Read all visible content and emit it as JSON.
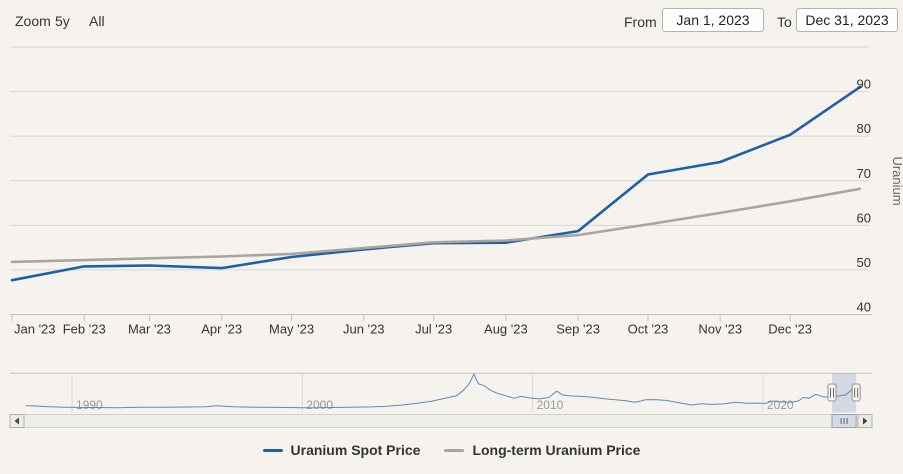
{
  "toolbar": {
    "zoom_label": "Zoom",
    "zoom_buttons": [
      "5y",
      "All"
    ],
    "from_label": "From",
    "from_value": "Jan 1, 2023",
    "to_label": "To",
    "to_value": "Dec 31, 2023"
  },
  "colors": {
    "background": "#f6f3ee",
    "spot": "#1e5fa8",
    "long_term": "#a9a59e",
    "navigator_line": "#6189b7",
    "navigator_mask": "rgba(91,125,188,0.22)",
    "grid": "#d8d6d1",
    "axis": "#c5c3be",
    "text": "#333333",
    "muted_text": "#999999",
    "axis_title": "#666666"
  },
  "chart_data": {
    "type": "line",
    "title": "",
    "y_axis": {
      "title": "Uranium",
      "side": "right",
      "ticks": [
        40,
        50,
        60,
        70,
        80,
        90
      ],
      "range": [
        40,
        100
      ],
      "grid": true
    },
    "x_axis": {
      "tick_labels": [
        "Jan '23",
        "Feb '23",
        "Mar '23",
        "Apr '23",
        "May '23",
        "Jun '23",
        "Jul '23",
        "Aug '23",
        "Sep '23",
        "Oct '23",
        "Nov '23",
        "Dec '23"
      ],
      "range": [
        "Jan 1, 2023",
        "Dec 31, 2023"
      ]
    },
    "categories": [
      "Jan 1, 2023",
      "Feb 1, 2023",
      "Mar 1, 2023",
      "Apr 1, 2023",
      "May 1, 2023",
      "Jun 1, 2023",
      "Jul 1, 2023",
      "Aug 1, 2023",
      "Sep 1, 2023",
      "Oct 1, 2023",
      "Nov 1, 2023",
      "Dec 1, 2023",
      "Dec 31, 2023"
    ],
    "day_offsets": [
      0,
      31,
      59,
      90,
      120,
      151,
      181,
      212,
      243,
      273,
      304,
      334,
      364
    ],
    "series": [
      {
        "name": "Uranium Spot Price",
        "color": "#1e5fa8",
        "values": [
          47.7,
          50.8,
          51.0,
          50.4,
          52.9,
          54.6,
          56.0,
          56.1,
          58.7,
          71.4,
          74.2,
          80.3,
          91.0
        ]
      },
      {
        "name": "Long-term Uranium Price",
        "color": "#a9a59e",
        "values": [
          51.8,
          52.2,
          52.6,
          53.0,
          53.6,
          54.9,
          56.2,
          56.6,
          57.8,
          60.2,
          62.8,
          65.4,
          68.2
        ]
      }
    ],
    "navigator": {
      "tick_labels": [
        "1990",
        "2000",
        "2010",
        "2020"
      ],
      "tick_years": [
        1990,
        2000,
        2010,
        2020
      ],
      "selected_start_year": 2023.0,
      "selected_end_year": 2024.05,
      "points": [
        [
          1988,
          16
        ],
        [
          1988.5,
          14
        ],
        [
          1989,
          12
        ],
        [
          1989.7,
          10
        ],
        [
          1990.3,
          9
        ],
        [
          1991,
          8.6
        ],
        [
          1992,
          8.1
        ],
        [
          1993,
          9.7
        ],
        [
          1994,
          9.4
        ],
        [
          1995,
          10.5
        ],
        [
          1995.8,
          12
        ],
        [
          1996.3,
          15.8
        ],
        [
          1997,
          11.5
        ],
        [
          1998,
          9.7
        ],
        [
          1999,
          9.2
        ],
        [
          2000,
          7.6
        ],
        [
          2000.6,
          8.2
        ],
        [
          2001.3,
          8.8
        ],
        [
          2002,
          9.9
        ],
        [
          2003,
          11.2
        ],
        [
          2003.6,
          13
        ],
        [
          2004.3,
          18
        ],
        [
          2005,
          25
        ],
        [
          2005.6,
          33
        ],
        [
          2006.2,
          44
        ],
        [
          2006.7,
          54
        ],
        [
          2007.0,
          75
        ],
        [
          2007.25,
          100
        ],
        [
          2007.45,
          136
        ],
        [
          2007.65,
          99
        ],
        [
          2007.9,
          92
        ],
        [
          2008.2,
          73
        ],
        [
          2008.5,
          62
        ],
        [
          2008.9,
          52
        ],
        [
          2009.2,
          44
        ],
        [
          2009.5,
          51
        ],
        [
          2009.9,
          45
        ],
        [
          2010.3,
          41.5
        ],
        [
          2010.7,
          47
        ],
        [
          2011.05,
          71
        ],
        [
          2011.3,
          57
        ],
        [
          2011.7,
          52.5
        ],
        [
          2012.1,
          51
        ],
        [
          2012.6,
          48
        ],
        [
          2013.1,
          42
        ],
        [
          2013.6,
          38.5
        ],
        [
          2014.1,
          34
        ],
        [
          2014.45,
          28.5
        ],
        [
          2014.9,
          38
        ],
        [
          2015.3,
          39
        ],
        [
          2015.8,
          36
        ],
        [
          2016.3,
          28
        ],
        [
          2016.9,
          18.5
        ],
        [
          2017.3,
          23
        ],
        [
          2017.8,
          20.5
        ],
        [
          2018.3,
          22.5
        ],
        [
          2018.8,
          28.5
        ],
        [
          2019.3,
          25
        ],
        [
          2019.8,
          25.5
        ],
        [
          2020.1,
          24.5
        ],
        [
          2020.45,
          33.5
        ],
        [
          2020.8,
          30
        ],
        [
          2021.2,
          29
        ],
        [
          2021.55,
          34
        ],
        [
          2021.75,
          47
        ],
        [
          2022.0,
          44
        ],
        [
          2022.3,
          59
        ],
        [
          2022.6,
          50
        ],
        [
          2022.9,
          48
        ],
        [
          2023.1,
          50.5
        ],
        [
          2023.35,
          54
        ],
        [
          2023.6,
          57
        ],
        [
          2023.8,
          73
        ],
        [
          2024.0,
          91
        ]
      ]
    }
  },
  "legend": {
    "items": [
      {
        "label": "Uranium Spot Price",
        "color": "#1e5fa8"
      },
      {
        "label": "Long-term Uranium Price",
        "color": "#a9a59e"
      }
    ]
  }
}
